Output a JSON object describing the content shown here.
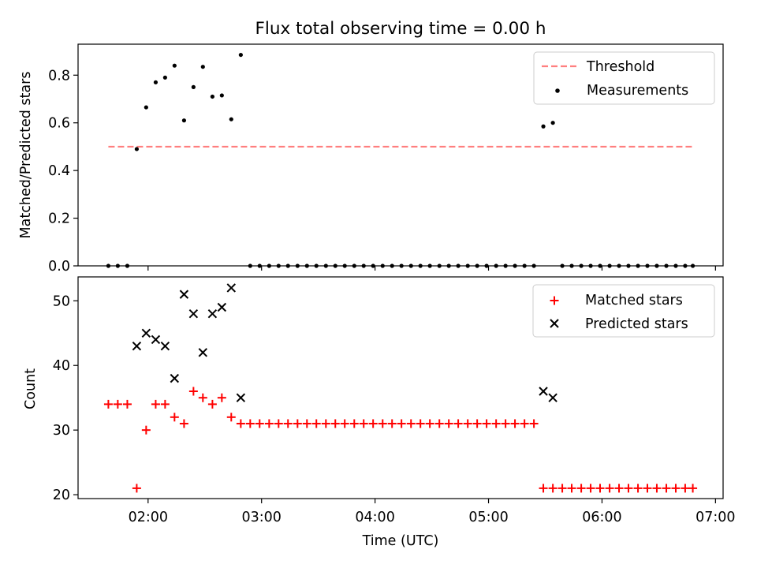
{
  "figure": {
    "title": "Flux total observing time = 0.00 h"
  },
  "chart_data": [
    {
      "type": "scatter",
      "panel": "top",
      "ylabel": "Matched/Predicted stars",
      "xlabel": "",
      "xlim": [
        1.383,
        7.067
      ],
      "ylim": [
        0.0,
        0.93
      ],
      "yticks": [
        0.0,
        0.2,
        0.4,
        0.6,
        0.8
      ],
      "ytick_labels": [
        "0.0",
        "0.2",
        "0.4",
        "0.6",
        "0.8"
      ],
      "threshold": {
        "name": "Threshold",
        "value": 0.5,
        "x_range": [
          1.65,
          6.8
        ],
        "color": "#ff7f7f"
      },
      "series": [
        {
          "name": "Measurements",
          "color": "#000000",
          "x": [
            1.65,
            1.733,
            1.817,
            1.9,
            1.983,
            2.067,
            2.15,
            2.233,
            2.317,
            2.4,
            2.483,
            2.567,
            2.65,
            2.733,
            2.817,
            2.9,
            2.983,
            3.067,
            3.15,
            3.233,
            3.317,
            3.4,
            3.483,
            3.567,
            3.65,
            3.733,
            3.817,
            3.9,
            3.983,
            4.067,
            4.15,
            4.233,
            4.317,
            4.4,
            4.483,
            4.567,
            4.65,
            4.733,
            4.817,
            4.9,
            4.983,
            5.067,
            5.15,
            5.233,
            5.317,
            5.4,
            5.483,
            5.567,
            5.65,
            5.733,
            5.817,
            5.9,
            5.983,
            6.067,
            6.15,
            6.233,
            6.317,
            6.4,
            6.483,
            6.567,
            6.65,
            6.733,
            6.8
          ],
          "y": [
            0.0,
            0.0,
            0.0,
            0.49,
            0.665,
            0.77,
            0.79,
            0.84,
            0.61,
            0.75,
            0.835,
            0.71,
            0.715,
            0.615,
            0.885,
            0.0,
            0.0,
            0.0,
            0.0,
            0.0,
            0.0,
            0.0,
            0.0,
            0.0,
            0.0,
            0.0,
            0.0,
            0.0,
            0.0,
            0.0,
            0.0,
            0.0,
            0.0,
            0.0,
            0.0,
            0.0,
            0.0,
            0.0,
            0.0,
            0.0,
            0.0,
            0.0,
            0.0,
            0.0,
            0.0,
            0.0,
            0.585,
            0.6,
            0.0,
            0.0,
            0.0,
            0.0,
            0.0,
            0.0,
            0.0,
            0.0,
            0.0,
            0.0,
            0.0,
            0.0,
            0.0,
            0.0,
            0.0
          ]
        }
      ],
      "legend": {
        "position": "top-right",
        "entries": [
          "Threshold",
          "Measurements"
        ]
      },
      "grid": false
    },
    {
      "type": "scatter",
      "panel": "bottom",
      "ylabel": "Count",
      "xlabel": "Time (UTC)",
      "xlim": [
        1.383,
        7.067
      ],
      "ylim": [
        19.4,
        53.7
      ],
      "yticks": [
        20,
        30,
        40,
        50
      ],
      "ytick_labels": [
        "20",
        "30",
        "40",
        "50"
      ],
      "xticks": [
        2,
        3,
        4,
        5,
        6,
        7
      ],
      "xtick_labels": [
        "02:00",
        "03:00",
        "04:00",
        "05:00",
        "06:00",
        "07:00"
      ],
      "series": [
        {
          "name": "Matched stars",
          "marker": "+",
          "color": "#ff0000",
          "x": [
            1.65,
            1.733,
            1.817,
            1.9,
            1.983,
            2.067,
            2.15,
            2.233,
            2.317,
            2.4,
            2.483,
            2.567,
            2.65,
            2.733,
            2.817,
            2.9,
            2.983,
            3.067,
            3.15,
            3.233,
            3.317,
            3.4,
            3.483,
            3.567,
            3.65,
            3.733,
            3.817,
            3.9,
            3.983,
            4.067,
            4.15,
            4.233,
            4.317,
            4.4,
            4.483,
            4.567,
            4.65,
            4.733,
            4.817,
            4.9,
            4.983,
            5.067,
            5.15,
            5.233,
            5.317,
            5.4,
            5.483,
            5.567,
            5.65,
            5.733,
            5.817,
            5.9,
            5.983,
            6.067,
            6.15,
            6.233,
            6.317,
            6.4,
            6.483,
            6.567,
            6.65,
            6.733,
            6.8
          ],
          "y": [
            34,
            34,
            34,
            21,
            30,
            34,
            34,
            32,
            31,
            36,
            35,
            34,
            35,
            32,
            31,
            31,
            31,
            31,
            31,
            31,
            31,
            31,
            31,
            31,
            31,
            31,
            31,
            31,
            31,
            31,
            31,
            31,
            31,
            31,
            31,
            31,
            31,
            31,
            31,
            31,
            31,
            31,
            31,
            31,
            31,
            31,
            21,
            21,
            21,
            21,
            21,
            21,
            21,
            21,
            21,
            21,
            21,
            21,
            21,
            21,
            21,
            21,
            21
          ]
        },
        {
          "name": "Predicted stars",
          "marker": "x",
          "color": "#000000",
          "x": [
            1.9,
            1.983,
            2.067,
            2.15,
            2.233,
            2.317,
            2.4,
            2.483,
            2.567,
            2.65,
            2.733,
            2.817,
            5.483,
            5.567
          ],
          "y": [
            43,
            45,
            44,
            43,
            38,
            51,
            48,
            42,
            48,
            49,
            52,
            35,
            36,
            35
          ]
        }
      ],
      "legend": {
        "position": "top-right",
        "entries": [
          "Matched stars",
          "Predicted stars"
        ]
      },
      "grid": false
    }
  ]
}
